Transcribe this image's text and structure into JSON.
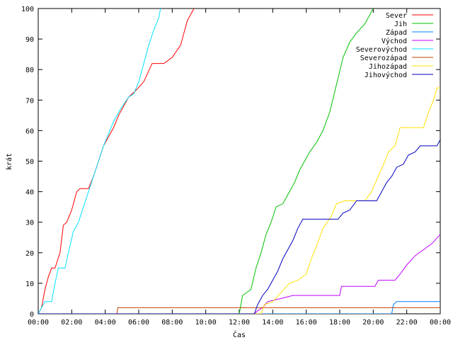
{
  "chart_data": {
    "type": "line",
    "title": "",
    "xlabel": "Čas",
    "ylabel": "krát",
    "xlim": [
      0,
      24
    ],
    "ylim": [
      0,
      100
    ],
    "x_ticks": [
      "00:00",
      "02:00",
      "04:00",
      "06:00",
      "08:00",
      "10:00",
      "12:00",
      "14:00",
      "16:00",
      "18:00",
      "20:00",
      "22:00",
      "00:00"
    ],
    "y_ticks": [
      0,
      10,
      20,
      30,
      40,
      50,
      60,
      70,
      80,
      90,
      100
    ],
    "grid": false,
    "legend_position": "top-right",
    "x_unit": "hours since 00:00",
    "series": [
      {
        "name": "Sever",
        "color": "#ff0000",
        "points": [
          [
            0,
            0
          ],
          [
            0.2,
            2
          ],
          [
            0.4,
            8
          ],
          [
            0.6,
            12
          ],
          [
            0.8,
            15
          ],
          [
            1,
            15
          ],
          [
            1.3,
            20
          ],
          [
            1.5,
            29
          ],
          [
            1.7,
            30
          ],
          [
            2,
            34
          ],
          [
            2.3,
            40
          ],
          [
            2.5,
            41
          ],
          [
            3,
            41
          ],
          [
            3.3,
            45
          ],
          [
            3.6,
            50
          ],
          [
            3.9,
            55
          ],
          [
            4.2,
            58
          ],
          [
            4.5,
            61
          ],
          [
            4.8,
            65
          ],
          [
            5.1,
            68
          ],
          [
            5.4,
            71
          ],
          [
            5.8,
            73
          ],
          [
            6.3,
            76
          ],
          [
            6.8,
            82
          ],
          [
            7.5,
            82
          ],
          [
            8,
            84
          ],
          [
            8.5,
            88
          ],
          [
            8.9,
            96
          ],
          [
            9.3,
            100
          ]
        ]
      },
      {
        "name": "Jih",
        "color": "#00c000",
        "points": [
          [
            0,
            0
          ],
          [
            12,
            0
          ],
          [
            12.2,
            6
          ],
          [
            12.7,
            8
          ],
          [
            13,
            15
          ],
          [
            13.3,
            20
          ],
          [
            13.6,
            26
          ],
          [
            13.9,
            30
          ],
          [
            14.2,
            35
          ],
          [
            14.6,
            36
          ],
          [
            15,
            40
          ],
          [
            15.3,
            43
          ],
          [
            15.6,
            47
          ],
          [
            15.9,
            50
          ],
          [
            16.2,
            53
          ],
          [
            16.6,
            56
          ],
          [
            17,
            60
          ],
          [
            17.4,
            66
          ],
          [
            17.8,
            75
          ],
          [
            18.2,
            84
          ],
          [
            18.6,
            89
          ],
          [
            19,
            92
          ],
          [
            19.5,
            95
          ],
          [
            20,
            100
          ]
        ]
      },
      {
        "name": "Západ",
        "color": "#0080ff",
        "points": [
          [
            0,
            0
          ],
          [
            21.1,
            0
          ],
          [
            21.2,
            3
          ],
          [
            21.4,
            4
          ],
          [
            24,
            4
          ]
        ]
      },
      {
        "name": "Východ",
        "color": "#c000ff",
        "points": [
          [
            0,
            0
          ],
          [
            12.9,
            0
          ],
          [
            13.1,
            1
          ],
          [
            13.4,
            2
          ],
          [
            13.7,
            4
          ],
          [
            14.5,
            5
          ],
          [
            15.2,
            6
          ],
          [
            18,
            6
          ],
          [
            18.1,
            9
          ],
          [
            20.1,
            9
          ],
          [
            20.3,
            11
          ],
          [
            21.3,
            11
          ],
          [
            21.6,
            13
          ],
          [
            22,
            16
          ],
          [
            22.5,
            19
          ],
          [
            23,
            21
          ],
          [
            23.5,
            23
          ],
          [
            24,
            26
          ]
        ]
      },
      {
        "name": "Severovýchod",
        "color": "#00e0ff",
        "points": [
          [
            0,
            0
          ],
          [
            0.2,
            2
          ],
          [
            0.4,
            4
          ],
          [
            0.8,
            4
          ],
          [
            1,
            10
          ],
          [
            1.2,
            15
          ],
          [
            1.6,
            15
          ],
          [
            1.8,
            20
          ],
          [
            2.1,
            27
          ],
          [
            2.4,
            30
          ],
          [
            2.7,
            35
          ],
          [
            3,
            40
          ],
          [
            3.3,
            45
          ],
          [
            3.6,
            50
          ],
          [
            3.9,
            55
          ],
          [
            4.2,
            59
          ],
          [
            4.5,
            63
          ],
          [
            4.9,
            67
          ],
          [
            5.4,
            71
          ],
          [
            5.7,
            72
          ],
          [
            6,
            76
          ],
          [
            6.3,
            82
          ],
          [
            6.6,
            88
          ],
          [
            6.9,
            93
          ],
          [
            7.2,
            97
          ],
          [
            7.3,
            100
          ]
        ]
      },
      {
        "name": "Severozápad",
        "color": "#c04000",
        "points": [
          [
            0,
            0
          ],
          [
            4.7,
            0
          ],
          [
            4.75,
            2
          ],
          [
            24,
            2
          ]
        ]
      },
      {
        "name": "Jihozápad",
        "color": "#ffe000",
        "points": [
          [
            0,
            0
          ],
          [
            13.3,
            0
          ],
          [
            13.5,
            3
          ],
          [
            14,
            4
          ],
          [
            14.5,
            7
          ],
          [
            15,
            10
          ],
          [
            15.5,
            11
          ],
          [
            16,
            13
          ],
          [
            16.3,
            18
          ],
          [
            16.6,
            22
          ],
          [
            17,
            28
          ],
          [
            17.5,
            32
          ],
          [
            17.8,
            36
          ],
          [
            18.3,
            37
          ],
          [
            19.5,
            37
          ],
          [
            19.9,
            40
          ],
          [
            20.3,
            45
          ],
          [
            20.7,
            50
          ],
          [
            20.9,
            53
          ],
          [
            21.3,
            55
          ],
          [
            21.6,
            61
          ],
          [
            23,
            61
          ],
          [
            23.3,
            66
          ],
          [
            23.6,
            70
          ],
          [
            23.8,
            74
          ],
          [
            24,
            74
          ]
        ]
      },
      {
        "name": "Jihovýchod",
        "color": "#0000c0",
        "points": [
          [
            0,
            0
          ],
          [
            12.9,
            0
          ],
          [
            13.1,
            3
          ],
          [
            13.4,
            6
          ],
          [
            13.7,
            8
          ],
          [
            14,
            11
          ],
          [
            14.3,
            14
          ],
          [
            14.6,
            18
          ],
          [
            14.9,
            21
          ],
          [
            15.2,
            24
          ],
          [
            15.5,
            28
          ],
          [
            15.8,
            31
          ],
          [
            17.9,
            31
          ],
          [
            18.2,
            33
          ],
          [
            18.6,
            34
          ],
          [
            19,
            37
          ],
          [
            20.2,
            37
          ],
          [
            20.5,
            40
          ],
          [
            20.8,
            43
          ],
          [
            21.1,
            45
          ],
          [
            21.4,
            48
          ],
          [
            21.8,
            49
          ],
          [
            22.1,
            52
          ],
          [
            22.5,
            53
          ],
          [
            22.8,
            55
          ],
          [
            23.8,
            55
          ],
          [
            24,
            57
          ]
        ]
      }
    ]
  }
}
